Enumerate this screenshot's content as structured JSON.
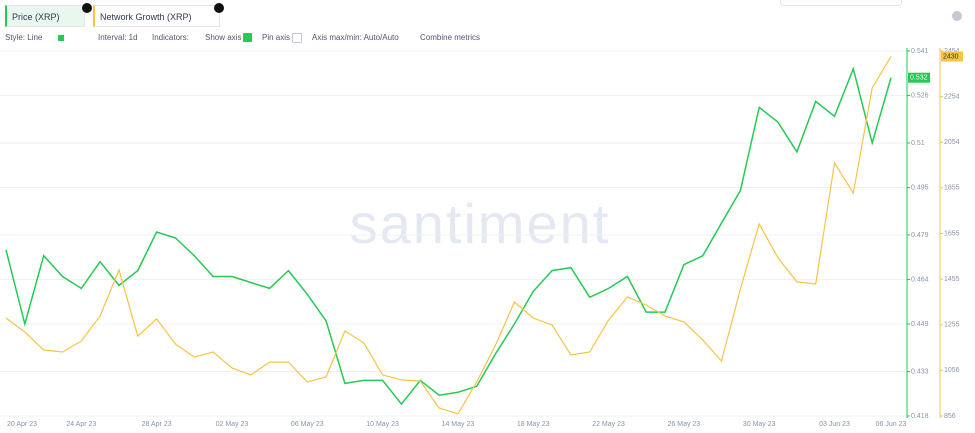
{
  "legend": {
    "close": null
  },
  "toolbar": {
    "style": "Style: Line",
    "interval": "Interval: 1d",
    "indicators": "Indicators:",
    "show_axis": "Show axis",
    "pin_axis": "Pin axis",
    "axis_minmax": "Axis max/min: Auto/Auto",
    "combine": "Combine metrics"
  },
  "chart_data": {
    "type": "line",
    "watermark": "santiment",
    "x": [
      "20 Apr 23",
      null,
      null,
      null,
      "24 Apr 23",
      null,
      null,
      null,
      "28 Apr 23",
      null,
      null,
      null,
      "02 May 23",
      null,
      null,
      null,
      "06 May 23",
      null,
      null,
      null,
      "10 May 23",
      null,
      null,
      null,
      "14 May 23",
      null,
      null,
      null,
      "18 May 23",
      null,
      null,
      null,
      "22 May 23",
      null,
      null,
      null,
      "26 May 23",
      null,
      null,
      null,
      "30 May 23",
      null,
      null,
      null,
      "03 Jun 23",
      null,
      null,
      "06 Jun 23"
    ],
    "series": [
      {
        "name": "Price (XRP)",
        "color": "#26c953",
        "axis": "y",
        "values": [
          0.474,
          0.449,
          0.472,
          0.465,
          0.461,
          0.47,
          0.462,
          0.467,
          0.48,
          0.478,
          0.472,
          0.465,
          0.465,
          0.463,
          0.461,
          0.467,
          0.459,
          0.45,
          0.429,
          0.43,
          0.43,
          0.422,
          0.43,
          0.425,
          0.426,
          0.428,
          0.439,
          0.449,
          0.46,
          0.467,
          0.468,
          0.458,
          0.461,
          0.465,
          0.453,
          0.453,
          0.469,
          0.472,
          0.483,
          0.494,
          0.522,
          0.517,
          0.507,
          0.524,
          0.519,
          0.535,
          0.51,
          0.532
        ]
      },
      {
        "name": "Network Growth (XRP)",
        "color": "#f5c445",
        "axis": "y2",
        "values": [
          1285,
          1224,
          1145,
          1136,
          1184,
          1294,
          1495,
          1206,
          1281,
          1171,
          1114,
          1136,
          1066,
          1036,
          1092,
          1092,
          1005,
          1027,
          1228,
          1176,
          1036,
          1014,
          1009,
          891,
          865,
          1005,
          1167,
          1355,
          1285,
          1254,
          1123,
          1136,
          1276,
          1377,
          1342,
          1294,
          1268,
          1189,
          1097,
          1412,
          1697,
          1548,
          1443,
          1434,
          1964,
          1832,
          2292,
          2430
        ]
      }
    ],
    "ylim": [
      0.418,
      0.541
    ],
    "yticks": [
      0.418,
      0.433,
      0.449,
      0.464,
      0.479,
      0.495,
      0.51,
      0.526,
      0.541
    ],
    "y2lim": [
      856,
      2454
    ],
    "y2ticks": [
      856,
      1056,
      1255,
      1455,
      1655,
      1855,
      2054,
      2254,
      2454
    ],
    "grid": true
  }
}
